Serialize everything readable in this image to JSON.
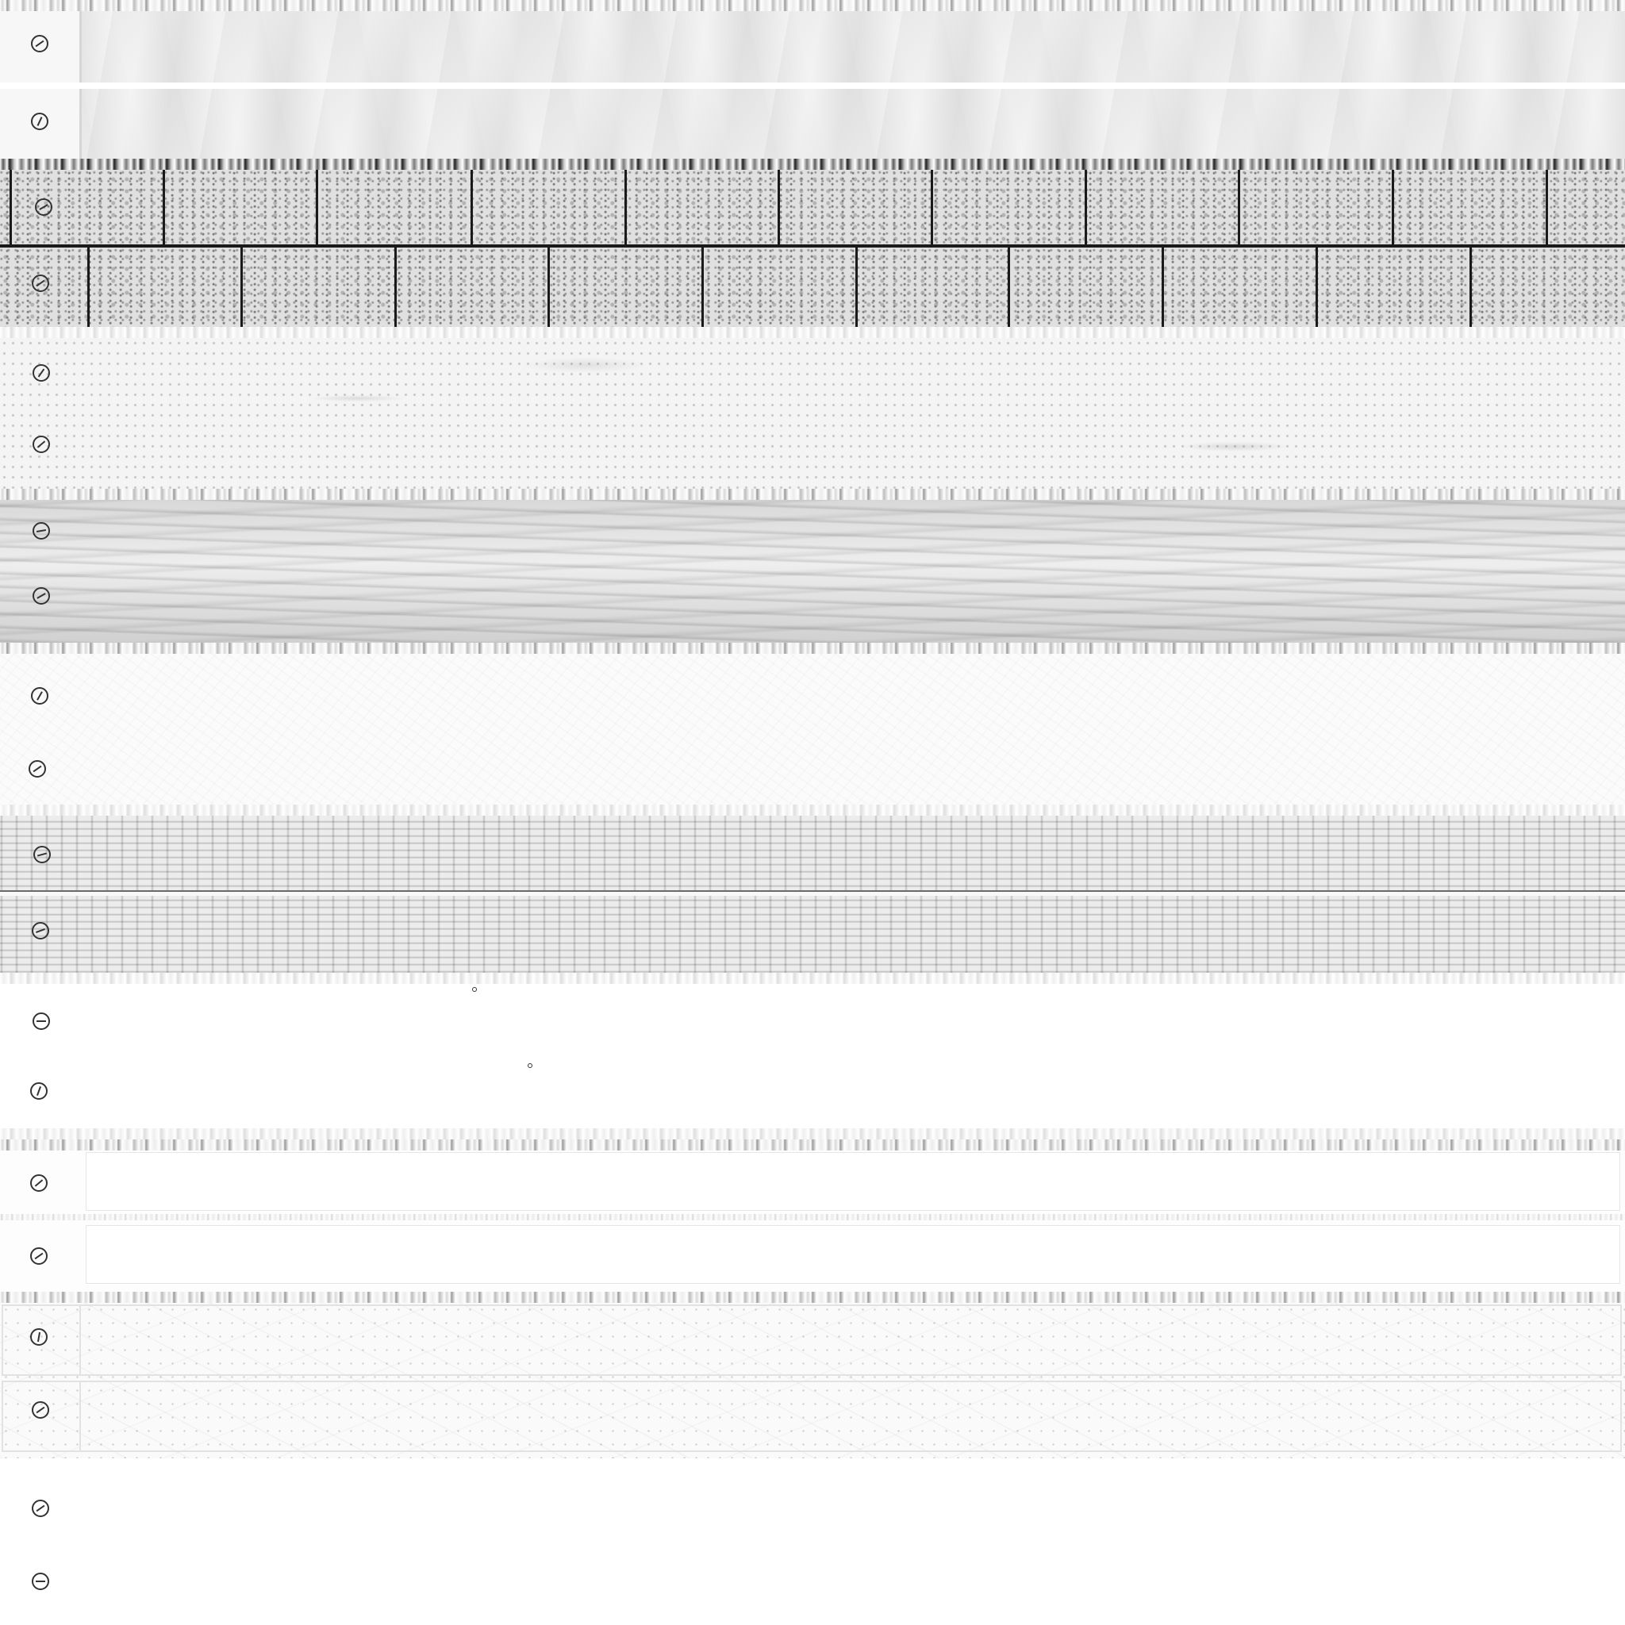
{
  "atlas": {
    "textures": [
      {
        "surface": "fabric",
        "marker_icon": "circle-slash-icon"
      },
      {
        "surface": "granite-paver",
        "marker_icon": "circle-slash-icon"
      },
      {
        "surface": "concrete",
        "marker_icon": "circle-slash-icon"
      },
      {
        "surface": "wood-grain",
        "marker_icon": "circle-slash-icon"
      },
      {
        "surface": "fiber",
        "marker_icon": "circle-slash-icon"
      },
      {
        "surface": "weathered-plank",
        "marker_icon": "circle-slash-icon"
      },
      {
        "surface": "plain",
        "marker_icon": "circle-slash-icon"
      },
      {
        "surface": "smooth-panel",
        "marker_icon": "circle-slash-icon"
      },
      {
        "surface": "scratched",
        "marker_icon": "circle-slash-icon"
      },
      {
        "surface": "blank",
        "marker_icon": "circle-slash-icon"
      }
    ],
    "colors": {
      "background": "#ffffff",
      "marker": "#333333",
      "joint": "#1a1a1a"
    }
  }
}
